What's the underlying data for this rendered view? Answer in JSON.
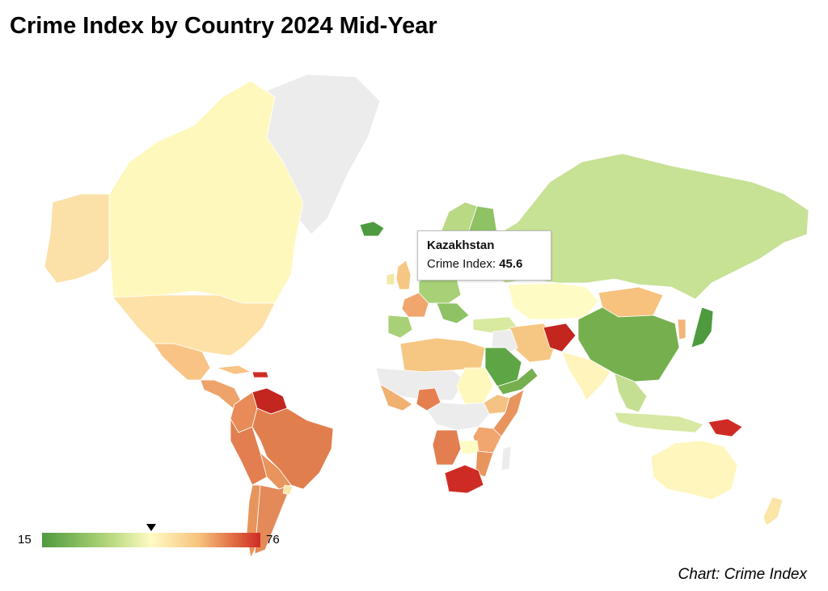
{
  "title": "Crime Index by Country 2024 Mid-Year",
  "source": "Chart: Crime Index",
  "legend": {
    "min": "15",
    "max": "76",
    "marker_value": 45.6
  },
  "tooltip": {
    "country": "Kazakhstan",
    "label": "Crime Index:",
    "value": "45.6"
  },
  "colors": {
    "no_data": "#ececec",
    "scale": [
      "#4e9a3f",
      "#b3d67a",
      "#fffbc4",
      "#f6c27d",
      "#e06c43",
      "#cf2b25"
    ],
    "border": "#ffffff"
  },
  "countries": [
    {
      "name": "greenland",
      "color": "#ececec"
    },
    {
      "name": "canada",
      "color": "#fff8bd"
    },
    {
      "name": "alaska",
      "color": "#fbe0a8"
    },
    {
      "name": "usa",
      "color": "#fde1a6"
    },
    {
      "name": "mexico",
      "color": "#f8c384"
    },
    {
      "name": "central-america",
      "color": "#eea36a"
    },
    {
      "name": "cuba",
      "color": "#f8c384"
    },
    {
      "name": "hispaniola",
      "color": "#cf2b25"
    },
    {
      "name": "venezuela",
      "color": "#c2261f"
    },
    {
      "name": "colombia",
      "color": "#e88b58"
    },
    {
      "name": "ecuador-peru",
      "color": "#e27e4f"
    },
    {
      "name": "brazil",
      "color": "#e07e4e"
    },
    {
      "name": "bolivia-paraguay",
      "color": "#e8955d"
    },
    {
      "name": "chile",
      "color": "#e8955d"
    },
    {
      "name": "argentina",
      "color": "#e48a58"
    },
    {
      "name": "uruguay",
      "color": "#fbe6a8"
    },
    {
      "name": "iceland",
      "color": "#4e9a3f"
    },
    {
      "name": "scandinavia",
      "color": "#b9d984"
    },
    {
      "name": "finland",
      "color": "#8fc264"
    },
    {
      "name": "uk",
      "color": "#f6c783"
    },
    {
      "name": "ireland",
      "color": "#f2e9a8"
    },
    {
      "name": "france",
      "color": "#f0a66d"
    },
    {
      "name": "iberia",
      "color": "#a8d177"
    },
    {
      "name": "central-europe",
      "color": "#a8d177"
    },
    {
      "name": "balkans",
      "color": "#8fc264"
    },
    {
      "name": "russia",
      "color": "#c7e195"
    },
    {
      "name": "kazakhstan",
      "color": "#fffbc4"
    },
    {
      "name": "mongolia",
      "color": "#f6c27d"
    },
    {
      "name": "china",
      "color": "#76b04e"
    },
    {
      "name": "japan",
      "color": "#4e9a3f"
    },
    {
      "name": "korea",
      "color": "#f2b47a"
    },
    {
      "name": "turkey",
      "color": "#d8e9a0"
    },
    {
      "name": "iran",
      "color": "#f6c783"
    },
    {
      "name": "afghanistan",
      "color": "#c2261f"
    },
    {
      "name": "iraq-syria",
      "color": "#ececec"
    },
    {
      "name": "saudi-arabia",
      "color": "#5ea645"
    },
    {
      "name": "yemen-oman",
      "color": "#76b04e"
    },
    {
      "name": "india",
      "color": "#fff4bb"
    },
    {
      "name": "southeast-asia",
      "color": "#c5df92"
    },
    {
      "name": "indonesia",
      "color": "#d6e8a2"
    },
    {
      "name": "papua-new-guinea",
      "color": "#cf2b25"
    },
    {
      "name": "australia",
      "color": "#fff6bd"
    },
    {
      "name": "new-zealand",
      "color": "#fbe6a8"
    },
    {
      "name": "north-africa",
      "color": "#f6c783"
    },
    {
      "name": "sahel",
      "color": "#ececec"
    },
    {
      "name": "west-africa",
      "color": "#f0b070"
    },
    {
      "name": "nigeria",
      "color": "#e67f50"
    },
    {
      "name": "sudan",
      "color": "#fff8bd"
    },
    {
      "name": "ethiopia",
      "color": "#f4c383"
    },
    {
      "name": "somalia",
      "color": "#e8955d"
    },
    {
      "name": "central-africa",
      "color": "#ececec"
    },
    {
      "name": "kenya-tanzania",
      "color": "#f0a66d"
    },
    {
      "name": "angola",
      "color": "#e27e4f"
    },
    {
      "name": "zambia",
      "color": "#fffbc4"
    },
    {
      "name": "mozambique",
      "color": "#e8955d"
    },
    {
      "name": "south-africa",
      "color": "#cf2b25"
    },
    {
      "name": "madagascar",
      "color": "#ececec"
    }
  ]
}
